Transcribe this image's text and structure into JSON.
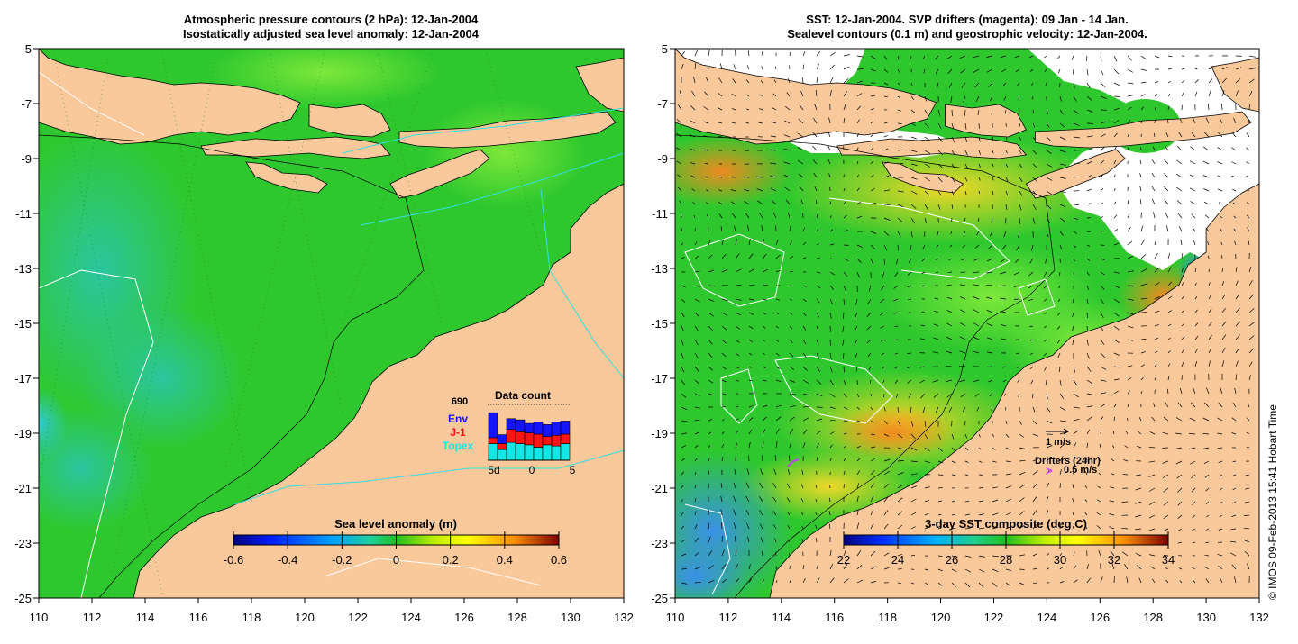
{
  "left_panel": {
    "title_line1": "Atmospheric pressure contours (2 hPa): 12-Jan-2004",
    "title_line2": "Isostatically adjusted sea level anomaly: 12-Jan-2004",
    "y_ticks": [
      "-5",
      "-7",
      "-9",
      "-11",
      "-13",
      "-15",
      "-17",
      "-19",
      "-21",
      "-23",
      "-25"
    ],
    "x_ticks": [
      "110",
      "112",
      "114",
      "116",
      "118",
      "120",
      "122",
      "124",
      "126",
      "128",
      "130",
      "132"
    ],
    "colorbar_title": "Sea level anomaly (m)",
    "colorbar_ticks": [
      "-0.6",
      "-0.4",
      "-0.2",
      "0",
      "0.2",
      "0.4",
      "0.6"
    ],
    "inset": {
      "title": "Data count",
      "total": "690",
      "legend": [
        {
          "label": "Env",
          "color": "#1414ff"
        },
        {
          "label": "J-1",
          "color": "#ff1414"
        },
        {
          "label": "Topex",
          "color": "#14e6e6"
        }
      ],
      "x_ticks": [
        "5d",
        "0",
        "5"
      ],
      "bars": [
        {
          "topex": 0.28,
          "j1": 0.1,
          "env": 0.42
        },
        {
          "topex": 0.18,
          "j1": 0.1,
          "env": 0.15
        },
        {
          "topex": 0.3,
          "j1": 0.22,
          "env": 0.18
        },
        {
          "topex": 0.28,
          "j1": 0.2,
          "env": 0.2
        },
        {
          "topex": 0.26,
          "j1": 0.2,
          "env": 0.16
        },
        {
          "topex": 0.22,
          "j1": 0.22,
          "env": 0.2
        },
        {
          "topex": 0.26,
          "j1": 0.14,
          "env": 0.2
        },
        {
          "topex": 0.24,
          "j1": 0.18,
          "env": 0.22
        },
        {
          "topex": 0.28,
          "j1": 0.16,
          "env": 0.22
        }
      ]
    }
  },
  "right_panel": {
    "title_line1": "SST: 12-Jan-2004. SVP drifters (magenta): 09 Jan - 14 Jan.",
    "title_line2": "Sealevel contours (0.1 m) and geostrophic velocity: 12-Jan-2004.",
    "y_ticks": [
      "-5",
      "-7",
      "-9",
      "-11",
      "-13",
      "-15",
      "-17",
      "-19",
      "-21",
      "-23",
      "-25"
    ],
    "x_ticks": [
      "110",
      "112",
      "114",
      "116",
      "118",
      "120",
      "122",
      "124",
      "126",
      "128",
      "130",
      "132"
    ],
    "colorbar_title": "3-day SST composite (deg C)",
    "colorbar_ticks": [
      "22",
      "24",
      "26",
      "28",
      "30",
      "32",
      "34"
    ],
    "velocity_scale_label": "1 m/s",
    "drifters_label": "Drifters (24hr)",
    "drifter_scale_label": "0.5 m/s"
  },
  "credit": "© IMOS 09-Feb-2013 15:41 Hobart Time",
  "colors": {
    "land": "#f9c99b",
    "ocean_green": "#2ec82e",
    "ocean_light_green": "#5ee03a",
    "ocean_teal": "#28c078",
    "cloud_white": "#ffffff",
    "sst_orange": "#f0a030",
    "sst_yellow": "#d8e030",
    "sst_blue": "#3aa0e8"
  }
}
